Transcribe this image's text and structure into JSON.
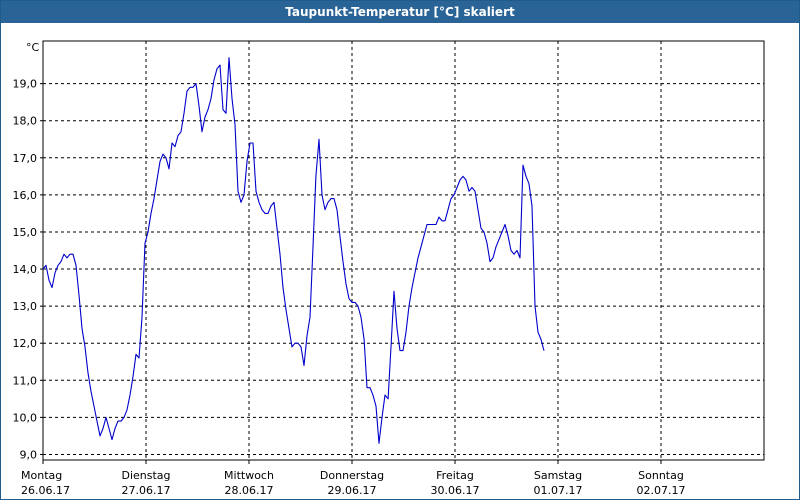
{
  "window": {
    "title": "Taupunkt-Temperatur [°C] skaliert"
  },
  "chart_data": {
    "type": "line",
    "title": "Taupunkt-Temperatur [°C] skaliert",
    "unit": "°C",
    "ylim": [
      8.85,
      20.15
    ],
    "yticks": [
      "9,0",
      "10,0",
      "11,0",
      "12,0",
      "13,0",
      "14,0",
      "15,0",
      "16,0",
      "17,0",
      "18,0",
      "19,0"
    ],
    "xlim": [
      0,
      7
    ],
    "grid": true,
    "xticks": [
      {
        "day": "Montag",
        "date": "26.06.17"
      },
      {
        "day": "Dienstag",
        "date": "27.06.17"
      },
      {
        "day": "Mittwoch",
        "date": "28.06.17"
      },
      {
        "day": "Donnerstag",
        "date": "29.06.17"
      },
      {
        "day": "Freitag",
        "date": "30.06.17"
      },
      {
        "day": "Samstag",
        "date": "01.07.17"
      },
      {
        "day": "Sonntag",
        "date": "02.07.17"
      }
    ],
    "series": [
      {
        "values": [
          [
            0.0,
            14.0
          ],
          [
            0.029,
            14.1
          ],
          [
            0.058,
            13.7
          ],
          [
            0.087,
            13.5
          ],
          [
            0.117,
            13.9
          ],
          [
            0.146,
            14.1
          ],
          [
            0.175,
            14.2
          ],
          [
            0.204,
            14.4
          ],
          [
            0.233,
            14.3
          ],
          [
            0.262,
            14.4
          ],
          [
            0.291,
            14.4
          ],
          [
            0.32,
            14.1
          ],
          [
            0.35,
            13.3
          ],
          [
            0.379,
            12.4
          ],
          [
            0.408,
            11.9
          ],
          [
            0.437,
            11.2
          ],
          [
            0.466,
            10.7
          ],
          [
            0.495,
            10.3
          ],
          [
            0.524,
            9.9
          ],
          [
            0.553,
            9.5
          ],
          [
            0.583,
            9.7
          ],
          [
            0.612,
            10.0
          ],
          [
            0.641,
            9.7
          ],
          [
            0.67,
            9.4
          ],
          [
            0.699,
            9.7
          ],
          [
            0.728,
            9.9
          ],
          [
            0.757,
            9.9
          ],
          [
            0.786,
            10.0
          ],
          [
            0.816,
            10.2
          ],
          [
            0.845,
            10.6
          ],
          [
            0.874,
            11.1
          ],
          [
            0.903,
            11.7
          ],
          [
            0.932,
            11.6
          ],
          [
            0.961,
            12.7
          ],
          [
            0.99,
            14.7
          ],
          [
            1.019,
            15.0
          ],
          [
            1.049,
            15.5
          ],
          [
            1.078,
            15.9
          ],
          [
            1.107,
            16.4
          ],
          [
            1.136,
            16.9
          ],
          [
            1.165,
            17.1
          ],
          [
            1.194,
            17.0
          ],
          [
            1.223,
            16.7
          ],
          [
            1.252,
            17.4
          ],
          [
            1.282,
            17.3
          ],
          [
            1.311,
            17.6
          ],
          [
            1.34,
            17.7
          ],
          [
            1.369,
            18.2
          ],
          [
            1.398,
            18.8
          ],
          [
            1.427,
            18.9
          ],
          [
            1.456,
            18.9
          ],
          [
            1.485,
            19.0
          ],
          [
            1.515,
            18.4
          ],
          [
            1.544,
            17.7
          ],
          [
            1.573,
            18.1
          ],
          [
            1.602,
            18.3
          ],
          [
            1.631,
            18.6
          ],
          [
            1.66,
            19.1
          ],
          [
            1.689,
            19.4
          ],
          [
            1.718,
            19.5
          ],
          [
            1.748,
            18.3
          ],
          [
            1.777,
            18.2
          ],
          [
            1.806,
            19.7
          ],
          [
            1.835,
            18.6
          ],
          [
            1.864,
            17.9
          ],
          [
            1.893,
            16.1
          ],
          [
            1.922,
            15.8
          ],
          [
            1.951,
            16.0
          ],
          [
            1.981,
            16.9
          ],
          [
            2.01,
            17.4
          ],
          [
            2.039,
            17.4
          ],
          [
            2.068,
            16.1
          ],
          [
            2.097,
            15.8
          ],
          [
            2.126,
            15.6
          ],
          [
            2.155,
            15.5
          ],
          [
            2.184,
            15.5
          ],
          [
            2.214,
            15.7
          ],
          [
            2.243,
            15.8
          ],
          [
            2.272,
            15.1
          ],
          [
            2.301,
            14.4
          ],
          [
            2.33,
            13.5
          ],
          [
            2.359,
            12.9
          ],
          [
            2.388,
            12.4
          ],
          [
            2.417,
            11.9
          ],
          [
            2.447,
            12.0
          ],
          [
            2.476,
            12.0
          ],
          [
            2.505,
            11.9
          ],
          [
            2.534,
            11.4
          ],
          [
            2.563,
            12.2
          ],
          [
            2.592,
            12.7
          ],
          [
            2.621,
            14.6
          ],
          [
            2.65,
            16.5
          ],
          [
            2.68,
            17.5
          ],
          [
            2.709,
            16.0
          ],
          [
            2.738,
            15.6
          ],
          [
            2.767,
            15.8
          ],
          [
            2.796,
            15.9
          ],
          [
            2.825,
            15.9
          ],
          [
            2.854,
            15.6
          ],
          [
            2.883,
            14.9
          ],
          [
            2.913,
            14.2
          ],
          [
            2.942,
            13.6
          ],
          [
            2.971,
            13.2
          ],
          [
            3.0,
            13.1
          ],
          [
            3.029,
            13.1
          ],
          [
            3.058,
            13.0
          ],
          [
            3.087,
            12.7
          ],
          [
            3.117,
            12.1
          ],
          [
            3.146,
            10.8
          ],
          [
            3.175,
            10.8
          ],
          [
            3.204,
            10.6
          ],
          [
            3.233,
            10.3
          ],
          [
            3.262,
            9.3
          ],
          [
            3.291,
            10.0
          ],
          [
            3.32,
            10.6
          ],
          [
            3.35,
            10.5
          ],
          [
            3.379,
            11.9
          ],
          [
            3.408,
            13.4
          ],
          [
            3.437,
            12.4
          ],
          [
            3.466,
            11.8
          ],
          [
            3.495,
            11.8
          ],
          [
            3.524,
            12.3
          ],
          [
            3.553,
            13.0
          ],
          [
            3.583,
            13.5
          ],
          [
            3.612,
            13.9
          ],
          [
            3.641,
            14.3
          ],
          [
            3.67,
            14.6
          ],
          [
            3.699,
            14.9
          ],
          [
            3.728,
            15.2
          ],
          [
            3.757,
            15.2
          ],
          [
            3.786,
            15.2
          ],
          [
            3.816,
            15.2
          ],
          [
            3.845,
            15.4
          ],
          [
            3.874,
            15.3
          ],
          [
            3.903,
            15.3
          ],
          [
            3.932,
            15.6
          ],
          [
            3.961,
            15.9
          ],
          [
            3.99,
            16.0
          ],
          [
            4.019,
            16.2
          ],
          [
            4.049,
            16.4
          ],
          [
            4.078,
            16.5
          ],
          [
            4.107,
            16.4
          ],
          [
            4.136,
            16.1
          ],
          [
            4.165,
            16.2
          ],
          [
            4.194,
            16.1
          ],
          [
            4.223,
            15.6
          ],
          [
            4.252,
            15.1
          ],
          [
            4.282,
            15.0
          ],
          [
            4.311,
            14.7
          ],
          [
            4.34,
            14.2
          ],
          [
            4.369,
            14.3
          ],
          [
            4.398,
            14.6
          ],
          [
            4.427,
            14.8
          ],
          [
            4.456,
            15.0
          ],
          [
            4.485,
            15.2
          ],
          [
            4.515,
            14.9
          ],
          [
            4.544,
            14.5
          ],
          [
            4.573,
            14.4
          ],
          [
            4.602,
            14.5
          ],
          [
            4.631,
            14.3
          ],
          [
            4.66,
            16.8
          ],
          [
            4.689,
            16.5
          ],
          [
            4.718,
            16.3
          ],
          [
            4.748,
            15.7
          ],
          [
            4.777,
            13.0
          ],
          [
            4.806,
            12.3
          ],
          [
            4.835,
            12.1
          ],
          [
            4.864,
            11.8
          ]
        ]
      }
    ]
  }
}
